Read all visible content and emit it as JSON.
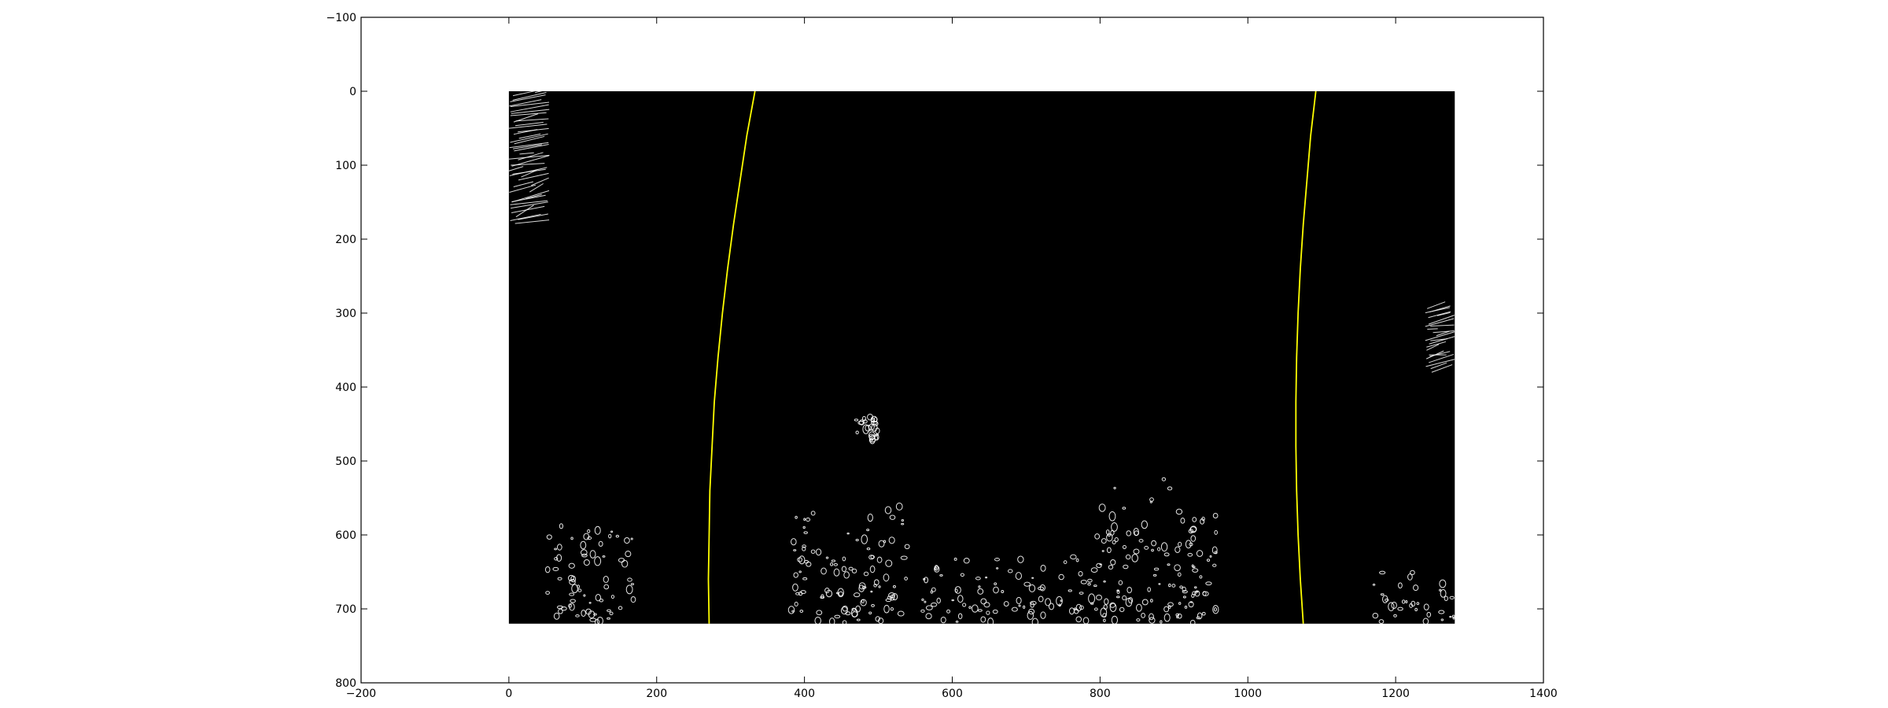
{
  "chart_data": {
    "type": "image",
    "title": "",
    "xlabel": "",
    "ylabel": "",
    "xlim": [
      -200,
      1400
    ],
    "ylim": [
      800,
      -100
    ],
    "y_inverted": true,
    "grid": false,
    "x_ticks": [
      -200,
      0,
      200,
      400,
      600,
      800,
      1000,
      1200,
      1400
    ],
    "y_ticks": [
      -100,
      0,
      100,
      200,
      300,
      400,
      500,
      600,
      700,
      800
    ],
    "image": {
      "description": "binary edge-detection image, white edges on black",
      "extent_x": [
        0,
        1280
      ],
      "extent_y": [
        0,
        720
      ],
      "background_color": "#000000",
      "edge_color": "#ffffff"
    },
    "series": [
      {
        "type": "line",
        "color": "#ffff00",
        "y": [
          0,
          60,
          120,
          180,
          240,
          300,
          360,
          420,
          480,
          540,
          600,
          660,
          720
        ],
        "x": [
          333,
          322,
          313,
          304,
          296,
          289,
          283,
          278,
          275,
          272,
          271,
          270,
          271
        ]
      },
      {
        "type": "line",
        "color": "#ffff00",
        "y": [
          0,
          60,
          120,
          180,
          240,
          300,
          360,
          420,
          480,
          540,
          600,
          660,
          720
        ],
        "x": [
          1092,
          1085,
          1080,
          1075,
          1071,
          1068,
          1066,
          1065,
          1065,
          1066,
          1068,
          1071,
          1075
        ]
      }
    ],
    "edge_clusters": [
      {
        "type": "hatch",
        "x": [
          0,
          55
        ],
        "y": [
          0,
          180
        ]
      },
      {
        "type": "hatch",
        "x": [
          1240,
          1280
        ],
        "y": [
          290,
          380
        ]
      },
      {
        "type": "blob",
        "x": [
          470,
          500
        ],
        "y": [
          440,
          475
        ]
      },
      {
        "type": "speckle",
        "x": [
          380,
          540
        ],
        "y": [
          550,
          720
        ]
      },
      {
        "type": "speckle",
        "x": [
          560,
          780
        ],
        "y": [
          620,
          720
        ]
      },
      {
        "type": "speckle",
        "x": [
          780,
          960
        ],
        "y": [
          520,
          720
        ]
      },
      {
        "type": "speckle",
        "x": [
          1170,
          1280
        ],
        "y": [
          640,
          720
        ]
      },
      {
        "type": "speckle",
        "x": [
          50,
          170
        ],
        "y": [
          570,
          720
        ]
      }
    ]
  }
}
